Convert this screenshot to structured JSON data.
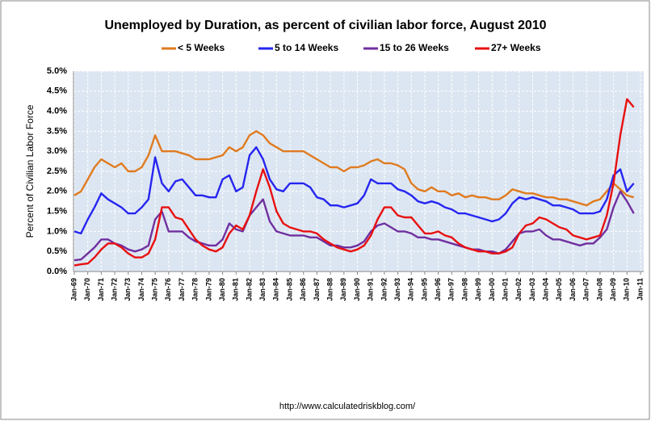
{
  "chart_data": {
    "type": "line",
    "title": "Unemployed by Duration, as percent of civilian labor force, August 2010",
    "y_label": "Percent of Civilian Labor Force",
    "source": "http://www.calculatedriskblog.com/",
    "categories": [
      "Jan-69",
      null,
      "Jan-70",
      null,
      "Jan-71",
      null,
      "Jan-72",
      null,
      "Jan-73",
      null,
      "Jan-74",
      null,
      "Jan-75",
      null,
      "Jan-76",
      null,
      "Jan-77",
      null,
      "Jan-78",
      null,
      "Jan-79",
      null,
      "Jan-80",
      null,
      "Jan-81",
      null,
      "Jan-82",
      null,
      "Jan-83",
      null,
      "Jan-84",
      null,
      "Jan-85",
      null,
      "Jan-86",
      null,
      "Jan-87",
      null,
      "Jan-88",
      null,
      "Jan-89",
      null,
      "Jan-90",
      null,
      "Jan-91",
      null,
      "Jan-92",
      null,
      "Jan-93",
      null,
      "Jan-94",
      null,
      "Jan-95",
      null,
      "Jan-96",
      null,
      "Jan-97",
      null,
      "Jan-98",
      null,
      "Jan-99",
      null,
      "Jan-00",
      null,
      "Jan-01",
      null,
      "Jan-02",
      null,
      "Jan-03",
      null,
      "Jan-04",
      null,
      "Jan-05",
      null,
      "Jan-06",
      null,
      "Jan-07",
      null,
      "Jan-08",
      null,
      "Jan-09",
      null,
      "Jan-10",
      null,
      "Jan-11"
    ],
    "series": [
      {
        "name": "< 5 Weeks",
        "color": "#e07b20",
        "values": [
          1.9,
          2.0,
          2.3,
          2.6,
          2.8,
          2.7,
          2.6,
          2.7,
          2.5,
          2.5,
          2.6,
          2.9,
          3.4,
          3.0,
          3.0,
          3.0,
          2.95,
          2.9,
          2.8,
          2.8,
          2.8,
          2.85,
          2.9,
          3.1,
          3.0,
          3.1,
          3.4,
          3.5,
          3.4,
          3.2,
          3.1,
          3.0,
          3.0,
          3.0,
          3.0,
          2.9,
          2.8,
          2.7,
          2.6,
          2.6,
          2.5,
          2.6,
          2.6,
          2.65,
          2.75,
          2.8,
          2.7,
          2.7,
          2.65,
          2.55,
          2.2,
          2.05,
          2.0,
          2.1,
          2.0,
          2.0,
          1.9,
          1.95,
          1.85,
          1.9,
          1.85,
          1.85,
          1.8,
          1.8,
          1.9,
          2.05,
          2.0,
          1.95,
          1.95,
          1.9,
          1.85,
          1.85,
          1.8,
          1.8,
          1.75,
          1.7,
          1.65,
          1.75,
          1.8,
          2.0,
          2.2,
          2.05,
          1.9,
          1.85,
          null
        ]
      },
      {
        "name": "5 to 14 Weeks",
        "color": "#2626f0",
        "values": [
          1.0,
          0.95,
          1.3,
          1.6,
          1.95,
          1.8,
          1.7,
          1.6,
          1.45,
          1.45,
          1.6,
          1.8,
          2.85,
          2.2,
          2.0,
          2.25,
          2.3,
          2.1,
          1.9,
          1.9,
          1.85,
          1.85,
          2.3,
          2.4,
          2.0,
          2.1,
          2.9,
          3.1,
          2.8,
          2.3,
          2.05,
          2.0,
          2.2,
          2.2,
          2.2,
          2.1,
          1.85,
          1.8,
          1.65,
          1.65,
          1.6,
          1.65,
          1.7,
          1.9,
          2.3,
          2.2,
          2.2,
          2.2,
          2.05,
          2.0,
          1.9,
          1.75,
          1.7,
          1.75,
          1.7,
          1.6,
          1.55,
          1.45,
          1.45,
          1.4,
          1.35,
          1.3,
          1.25,
          1.3,
          1.45,
          1.7,
          1.85,
          1.8,
          1.85,
          1.8,
          1.75,
          1.65,
          1.65,
          1.6,
          1.55,
          1.45,
          1.45,
          1.45,
          1.5,
          1.8,
          2.4,
          2.55,
          2.0,
          2.2,
          null
        ]
      },
      {
        "name": "15 to 26 Weeks",
        "color": "#7030a0",
        "values": [
          0.28,
          0.3,
          0.45,
          0.6,
          0.8,
          0.8,
          0.7,
          0.65,
          0.55,
          0.5,
          0.55,
          0.65,
          1.3,
          1.5,
          1.0,
          1.0,
          1.0,
          0.85,
          0.75,
          0.7,
          0.65,
          0.65,
          0.8,
          1.2,
          1.05,
          1.0,
          1.4,
          1.6,
          1.8,
          1.25,
          1.0,
          0.95,
          0.9,
          0.9,
          0.9,
          0.85,
          0.85,
          0.75,
          0.65,
          0.65,
          0.6,
          0.6,
          0.65,
          0.75,
          1.0,
          1.15,
          1.2,
          1.1,
          1.0,
          1.0,
          0.95,
          0.85,
          0.85,
          0.8,
          0.8,
          0.75,
          0.7,
          0.65,
          0.6,
          0.55,
          0.55,
          0.5,
          0.5,
          0.45,
          0.55,
          0.75,
          0.95,
          1.0,
          1.0,
          1.05,
          0.9,
          0.8,
          0.8,
          0.75,
          0.7,
          0.65,
          0.7,
          0.7,
          0.85,
          1.05,
          1.6,
          2.0,
          1.75,
          1.45,
          null
        ]
      },
      {
        "name": "27+ Weeks",
        "color": "#e81010",
        "values": [
          0.15,
          0.18,
          0.2,
          0.35,
          0.55,
          0.7,
          0.7,
          0.6,
          0.45,
          0.35,
          0.35,
          0.45,
          0.8,
          1.6,
          1.6,
          1.35,
          1.3,
          1.05,
          0.8,
          0.65,
          0.55,
          0.5,
          0.6,
          0.95,
          1.15,
          1.05,
          1.4,
          2.0,
          2.55,
          2.1,
          1.5,
          1.2,
          1.1,
          1.05,
          1.0,
          1.0,
          0.95,
          0.8,
          0.7,
          0.6,
          0.55,
          0.5,
          0.55,
          0.65,
          0.9,
          1.3,
          1.6,
          1.6,
          1.4,
          1.35,
          1.35,
          1.15,
          0.95,
          0.95,
          1.0,
          0.9,
          0.85,
          0.7,
          0.6,
          0.55,
          0.5,
          0.5,
          0.45,
          0.45,
          0.5,
          0.6,
          0.95,
          1.15,
          1.2,
          1.35,
          1.3,
          1.2,
          1.1,
          1.05,
          0.9,
          0.85,
          0.8,
          0.85,
          0.9,
          1.4,
          2.2,
          3.4,
          4.3,
          4.1,
          null
        ]
      }
    ],
    "ylim": [
      0,
      5
    ],
    "yticks": [
      {
        "value": 0,
        "label": "0.0%"
      },
      {
        "value": 0.5,
        "label": "0.5%"
      },
      {
        "value": 1,
        "label": "1.0%"
      },
      {
        "value": 1.5,
        "label": "1.5%"
      },
      {
        "value": 2,
        "label": "2.0%"
      },
      {
        "value": 2.5,
        "label": "2.5%"
      },
      {
        "value": 3,
        "label": "3.0%"
      },
      {
        "value": 3.5,
        "label": "3.5%"
      },
      {
        "value": 4,
        "label": "4.0%"
      },
      {
        "value": 4.5,
        "label": "4.5%"
      },
      {
        "value": 5,
        "label": "5.0%"
      }
    ],
    "grid": true
  }
}
